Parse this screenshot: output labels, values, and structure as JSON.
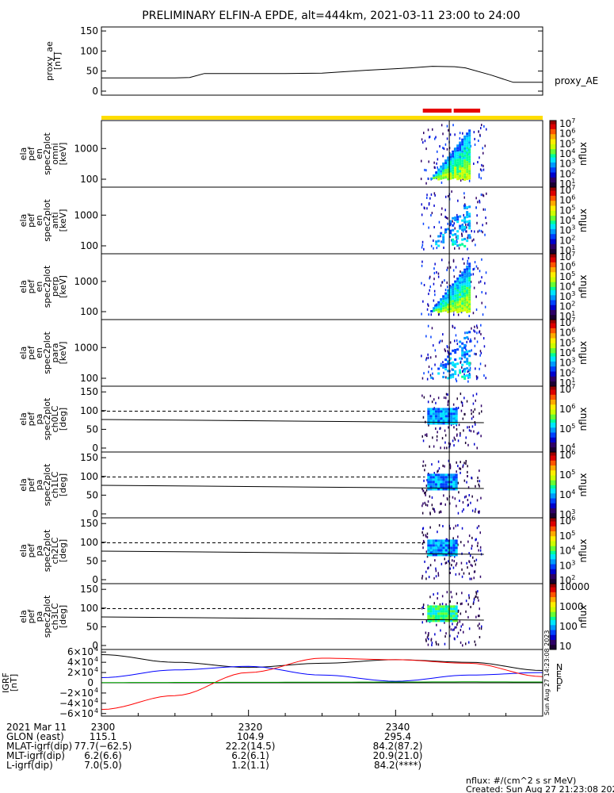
{
  "title": "PRELIMINARY ELFIN-A EPDE, alt=444km, 2021-03-11 23:00 to 24:00",
  "chart_data": [
    {
      "type": "line",
      "ylabel_lines": [
        "proxy_ae",
        "[nT]"
      ],
      "yticks": [
        0,
        50,
        100,
        150
      ],
      "ylim": [
        -10,
        160
      ],
      "series_label": "proxy_AE",
      "x_minutes": [
        0,
        10,
        12,
        14,
        20,
        25,
        30,
        36,
        42,
        45,
        48,
        49.5,
        53,
        56,
        60
      ],
      "values": [
        33,
        33,
        34,
        44,
        44,
        44,
        45,
        52,
        58,
        62,
        61,
        58,
        40,
        22,
        22
      ]
    },
    {
      "type": "heatmap",
      "ylabel_lines": [
        "ela",
        "pef",
        "en",
        "spec2plot",
        "omni",
        "[keV]"
      ],
      "scale": "log",
      "yticks": [
        "100",
        "1000"
      ],
      "cbar_ticks": [
        "10",
        "10",
        "10",
        "10",
        "10",
        "10",
        "10"
      ],
      "cbar_exps": [
        "1",
        "2",
        "3",
        "4",
        "5",
        "6",
        "7"
      ],
      "cbar_label": "nflux"
    },
    {
      "type": "heatmap",
      "ylabel_lines": [
        "ela",
        "pef",
        "en",
        "spec2plot",
        "anti",
        "[keV]"
      ],
      "scale": "log",
      "yticks": [
        "100",
        "1000"
      ],
      "cbar_ticks": [
        "10",
        "10",
        "10",
        "10",
        "10",
        "10",
        "10"
      ],
      "cbar_exps": [
        "1",
        "2",
        "3",
        "4",
        "5",
        "6",
        "7"
      ],
      "cbar_label": "nflux"
    },
    {
      "type": "heatmap",
      "ylabel_lines": [
        "ela",
        "pef",
        "en",
        "spec2plot",
        "perp",
        "[keV]"
      ],
      "scale": "log",
      "yticks": [
        "100",
        "1000"
      ],
      "cbar_ticks": [
        "10",
        "10",
        "10",
        "10",
        "10",
        "10",
        "10"
      ],
      "cbar_exps": [
        "1",
        "2",
        "3",
        "4",
        "5",
        "6",
        "7"
      ],
      "cbar_label": "nflux"
    },
    {
      "type": "heatmap",
      "ylabel_lines": [
        "ela",
        "pef",
        "en",
        "spec2plot",
        "para",
        "[keV]"
      ],
      "scale": "log",
      "yticks": [
        "100",
        "1000"
      ],
      "cbar_ticks": [
        "10",
        "10",
        "10",
        "10",
        "10",
        "10",
        "10"
      ],
      "cbar_exps": [
        "1",
        "2",
        "3",
        "4",
        "5",
        "6",
        "7"
      ],
      "cbar_label": "nflux"
    },
    {
      "type": "heatmap",
      "ylabel_lines": [
        "ela",
        "pef",
        "pa",
        "spec2plot",
        "ch0LC",
        "[deg]"
      ],
      "scale": "linear",
      "yticks": [
        "0",
        "50",
        "100",
        "150"
      ],
      "cbar_ticks": [
        "10",
        "10",
        "10",
        "10"
      ],
      "cbar_exps": [
        "4",
        "5",
        "6",
        "7"
      ],
      "cbar_label": "nflux"
    },
    {
      "type": "heatmap",
      "ylabel_lines": [
        "ela",
        "pef",
        "pa",
        "spec2plot",
        "ch1LC",
        "[deg]"
      ],
      "scale": "linear",
      "yticks": [
        "0",
        "50",
        "100",
        "150"
      ],
      "cbar_ticks": [
        "10",
        "10",
        "10",
        "10"
      ],
      "cbar_exps": [
        "3",
        "4",
        "5",
        "6"
      ],
      "cbar_label": "nflux"
    },
    {
      "type": "heatmap",
      "ylabel_lines": [
        "ela",
        "pef",
        "pa",
        "spec2plot",
        "ch2LC",
        "[deg]"
      ],
      "scale": "linear",
      "yticks": [
        "0",
        "50",
        "100",
        "150"
      ],
      "cbar_ticks": [
        "10",
        "10",
        "10",
        "10",
        "10"
      ],
      "cbar_exps": [
        "2",
        "3",
        "4",
        "5",
        "6"
      ],
      "cbar_label": "nflux"
    },
    {
      "type": "heatmap",
      "ylabel_lines": [
        "ela",
        "pef",
        "pa",
        "spec2plot",
        "ch3LC",
        "[deg]"
      ],
      "scale": "linear",
      "yticks": [
        "0",
        "50",
        "100",
        "150"
      ],
      "cbar_ticks": [
        "10",
        "100",
        "1000",
        "10000"
      ],
      "cbar_exps": [
        "",
        "",
        "",
        ""
      ],
      "cbar_label": "nflux"
    },
    {
      "type": "line",
      "ylabel_lines": [
        "IGRF",
        "[nT]"
      ],
      "ytick_mantissa": [
        "6×10",
        "4×10",
        "2×10",
        "0",
        "−2×10",
        "−4×10",
        "−6×10"
      ],
      "ytick_exp": "4",
      "ylim": [
        -65000,
        65000
      ],
      "legend": [
        "N",
        "E",
        "D",
        "F"
      ],
      "x_minutes": [
        0,
        10,
        20,
        30,
        40,
        50,
        60
      ],
      "series": [
        {
          "name": "N",
          "color": "#000000",
          "values": [
            55000,
            40000,
            30000,
            38000,
            45000,
            40000,
            24000
          ]
        },
        {
          "name": "E",
          "color": "#0000ff",
          "values": [
            10000,
            25000,
            32000,
            15000,
            3000,
            15000,
            20000
          ]
        },
        {
          "name": "D",
          "color": "#ff0000",
          "values": [
            -52000,
            -25000,
            20000,
            48000,
            45000,
            38000,
            12000
          ]
        },
        {
          "name": "F",
          "color": "#00aa00",
          "values": [
            500,
            700,
            900,
            1200,
            1500,
            1800,
            1500
          ]
        }
      ]
    }
  ],
  "xaxis": {
    "tick_labels": [
      "2300",
      "2320",
      "2340"
    ],
    "row_labels": [
      "2021 Mar 11",
      "GLON (east)",
      "MLAT-igrf(dip)",
      "MLT-igrf(dip)",
      "L-igrf(dip)"
    ],
    "row_values": [
      [
        "115.1",
        "104.9",
        "295.4"
      ],
      [
        "77.7(−62.5)",
        "22.2(14.5)",
        "84.2(87.2)"
      ],
      [
        "6.2(6.6)",
        "6.2(6.1)",
        "20.9(21.0)"
      ],
      [
        "7.0(5.0)",
        "1.2(1.1)",
        "84.2(****)"
      ]
    ]
  },
  "footer": {
    "units": "nflux: #/(cm^2 s sr MeV)",
    "created": "Created: Sun Aug 27 21:23:08 2023",
    "side_stamp": "Sun Aug 27 14:23:08 2023"
  },
  "colors": {
    "state_bar": "#ffdd00",
    "science_zone": "#e60000"
  }
}
